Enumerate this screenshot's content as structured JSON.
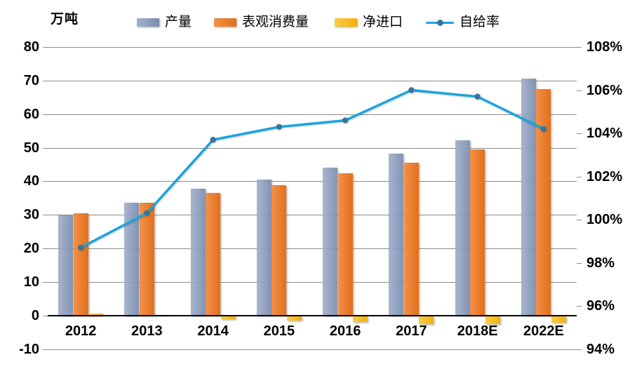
{
  "chart_data": {
    "type": "bar+line",
    "title": "",
    "categories": [
      "2012",
      "2013",
      "2014",
      "2015",
      "2016",
      "2017",
      "2018E",
      "2022E"
    ],
    "series": [
      {
        "key": "production",
        "name": "产量",
        "type": "bar",
        "axis": "left",
        "color": "#8496BA",
        "color_light": "#A2B0CC",
        "color_dark": "#7A8CAE",
        "values": [
          29.9,
          33.5,
          37.8,
          40.4,
          44.0,
          48.2,
          52.2,
          70.5
        ]
      },
      {
        "key": "apparent_consumption",
        "name": "表观消费量",
        "type": "bar",
        "axis": "left",
        "color": "#ED7B28",
        "color_light": "#F2914A",
        "color_dark": "#E36F1A",
        "values": [
          30.5,
          33.5,
          36.5,
          38.8,
          42.3,
          45.5,
          49.5,
          67.5
        ]
      },
      {
        "key": "net_imports",
        "name": "净进口",
        "type": "bar",
        "axis": "left",
        "color": "#F9BE1F",
        "color_light": "#FCCC45",
        "color_dark": "#F2B00C",
        "values": [
          0.5,
          0.1,
          -1.2,
          -1.5,
          -1.9,
          -2.5,
          -2.5,
          -2.2
        ]
      },
      {
        "key": "self_sufficiency",
        "name": "自给率",
        "type": "line",
        "axis": "right",
        "color": "#18A4DE",
        "marker_color": "#3A759E",
        "values": [
          98.7,
          100.3,
          103.7,
          104.3,
          104.6,
          106.0,
          105.7,
          104.2
        ]
      }
    ],
    "left_axis": {
      "label": "万吨",
      "min": -10,
      "max": 80,
      "ticks": [
        80,
        70,
        60,
        50,
        40,
        30,
        20,
        10,
        0,
        -10
      ]
    },
    "right_axis": {
      "min": 94,
      "max": 108,
      "ticks": [
        "108%",
        "106%",
        "104%",
        "102%",
        "100%",
        "98%",
        "96%",
        "94%"
      ]
    },
    "grid": true,
    "grid_color": "#8C8C8C",
    "axis_text_color": "#000000",
    "background": "#FFFFFF",
    "legend_position": "top"
  }
}
